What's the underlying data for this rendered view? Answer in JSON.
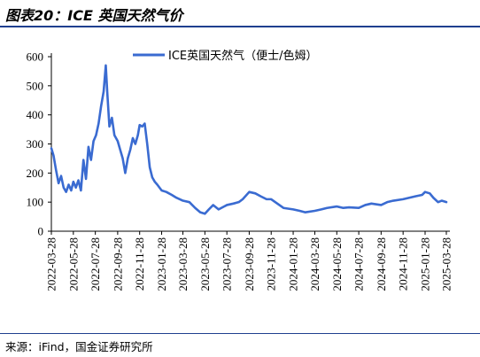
{
  "figure": {
    "title": "图表20：ICE 英国天然气价",
    "source": "来源：iFind，国金证券研究所"
  },
  "colors": {
    "series": "#3a6bd1",
    "rule": "#1f3f8f"
  },
  "chart_data": {
    "type": "line",
    "ylim": [
      0,
      600
    ],
    "yticks": [
      0,
      100,
      200,
      300,
      400,
      500,
      600
    ],
    "xticks": [
      "2022-03-28",
      "2022-05-28",
      "2022-07-28",
      "2022-09-28",
      "2022-11-28",
      "2023-01-28",
      "2023-03-28",
      "2023-05-28",
      "2023-07-28",
      "2023-09-28",
      "2023-11-28",
      "2024-01-28",
      "2024-03-28",
      "2024-05-28",
      "2024-07-28",
      "2024-09-28",
      "2024-11-28",
      "2025-01-28",
      "2025-03-28"
    ],
    "legend_position": "top-center",
    "grid": false,
    "series": [
      {
        "name": "ICE英国天然气（便士/色姆）",
        "points": [
          [
            "2022-03-28",
            285
          ],
          [
            "2022-04-03",
            260
          ],
          [
            "2022-04-10",
            210
          ],
          [
            "2022-04-17",
            165
          ],
          [
            "2022-04-24",
            190
          ],
          [
            "2022-05-01",
            150
          ],
          [
            "2022-05-08",
            135
          ],
          [
            "2022-05-15",
            160
          ],
          [
            "2022-05-22",
            140
          ],
          [
            "2022-05-28",
            170
          ],
          [
            "2022-06-04",
            150
          ],
          [
            "2022-06-11",
            175
          ],
          [
            "2022-06-18",
            140
          ],
          [
            "2022-06-25",
            245
          ],
          [
            "2022-07-02",
            180
          ],
          [
            "2022-07-09",
            290
          ],
          [
            "2022-07-16",
            245
          ],
          [
            "2022-07-23",
            310
          ],
          [
            "2022-07-30",
            330
          ],
          [
            "2022-08-06",
            370
          ],
          [
            "2022-08-13",
            430
          ],
          [
            "2022-08-20",
            480
          ],
          [
            "2022-08-26",
            570
          ],
          [
            "2022-08-30",
            480
          ],
          [
            "2022-09-05",
            360
          ],
          [
            "2022-09-12",
            390
          ],
          [
            "2022-09-19",
            330
          ],
          [
            "2022-09-28",
            310
          ],
          [
            "2022-10-05",
            280
          ],
          [
            "2022-10-12",
            250
          ],
          [
            "2022-10-19",
            200
          ],
          [
            "2022-10-26",
            250
          ],
          [
            "2022-11-02",
            280
          ],
          [
            "2022-11-09",
            320
          ],
          [
            "2022-11-16",
            300
          ],
          [
            "2022-11-23",
            330
          ],
          [
            "2022-11-28",
            365
          ],
          [
            "2022-12-05",
            360
          ],
          [
            "2022-12-12",
            370
          ],
          [
            "2022-12-19",
            300
          ],
          [
            "2022-12-26",
            220
          ],
          [
            "2023-01-02",
            185
          ],
          [
            "2023-01-09",
            170
          ],
          [
            "2023-01-16",
            160
          ],
          [
            "2023-01-28",
            140
          ],
          [
            "2023-02-10",
            135
          ],
          [
            "2023-02-25",
            125
          ],
          [
            "2023-03-10",
            115
          ],
          [
            "2023-03-28",
            105
          ],
          [
            "2023-04-15",
            100
          ],
          [
            "2023-05-01",
            80
          ],
          [
            "2023-05-15",
            65
          ],
          [
            "2023-05-28",
            60
          ],
          [
            "2023-06-08",
            75
          ],
          [
            "2023-06-20",
            90
          ],
          [
            "2023-07-05",
            75
          ],
          [
            "2023-07-28",
            90
          ],
          [
            "2023-08-15",
            95
          ],
          [
            "2023-08-30",
            100
          ],
          [
            "2023-09-10",
            110
          ],
          [
            "2023-09-28",
            135
          ],
          [
            "2023-10-15",
            130
          ],
          [
            "2023-10-30",
            120
          ],
          [
            "2023-11-15",
            110
          ],
          [
            "2023-11-28",
            110
          ],
          [
            "2023-12-15",
            95
          ],
          [
            "2024-01-01",
            80
          ],
          [
            "2024-01-28",
            75
          ],
          [
            "2024-02-15",
            70
          ],
          [
            "2024-03-01",
            65
          ],
          [
            "2024-03-28",
            70
          ],
          [
            "2024-04-15",
            75
          ],
          [
            "2024-05-01",
            80
          ],
          [
            "2024-05-28",
            85
          ],
          [
            "2024-06-15",
            80
          ],
          [
            "2024-07-01",
            82
          ],
          [
            "2024-07-28",
            80
          ],
          [
            "2024-08-15",
            90
          ],
          [
            "2024-09-01",
            95
          ],
          [
            "2024-09-28",
            90
          ],
          [
            "2024-10-15",
            100
          ],
          [
            "2024-11-01",
            105
          ],
          [
            "2024-11-28",
            110
          ],
          [
            "2024-12-15",
            115
          ],
          [
            "2025-01-01",
            120
          ],
          [
            "2025-01-20",
            125
          ],
          [
            "2025-01-28",
            135
          ],
          [
            "2025-02-10",
            130
          ],
          [
            "2025-02-20",
            115
          ],
          [
            "2025-03-05",
            100
          ],
          [
            "2025-03-15",
            105
          ],
          [
            "2025-03-28",
            100
          ]
        ]
      }
    ]
  }
}
